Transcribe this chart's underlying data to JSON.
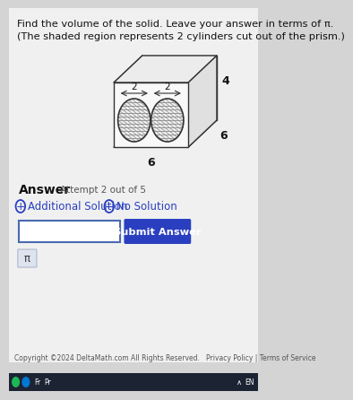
{
  "bg_color": "#d4d4d4",
  "content_bg": "#f0f0f0",
  "title_line1": "Find the volume of the solid. Leave your answer in terms of π.",
  "title_line2": "(The shaded region represents 2 cylinders cut out of the prism.)",
  "answer_label": "Answer",
  "attempt_text": "Attempt 2 out of 5",
  "additional_solution_text": "Additional Solution",
  "no_solution_text": "No Solution",
  "submit_button_text": "Submit Answer",
  "submit_button_color": "#2a3fc0",
  "pi_button_text": "π",
  "copyright_text": "Copyright ©2024 DeltaMath.com All Rights Reserved.   Privacy Policy | Terms of Service",
  "input_box_color": "#ffffff",
  "input_box_border": "#4a6ab0",
  "text_color": "#111111",
  "blue_text_color": "#2a3fc0",
  "dim_label_4": "4",
  "dim_label_6a": "6",
  "dim_label_6b": "6",
  "dim_label_2a": "2",
  "dim_label_2b": "2",
  "taskbar_color": "#1a1a2e",
  "white_panel_color": "#f0f0f0"
}
